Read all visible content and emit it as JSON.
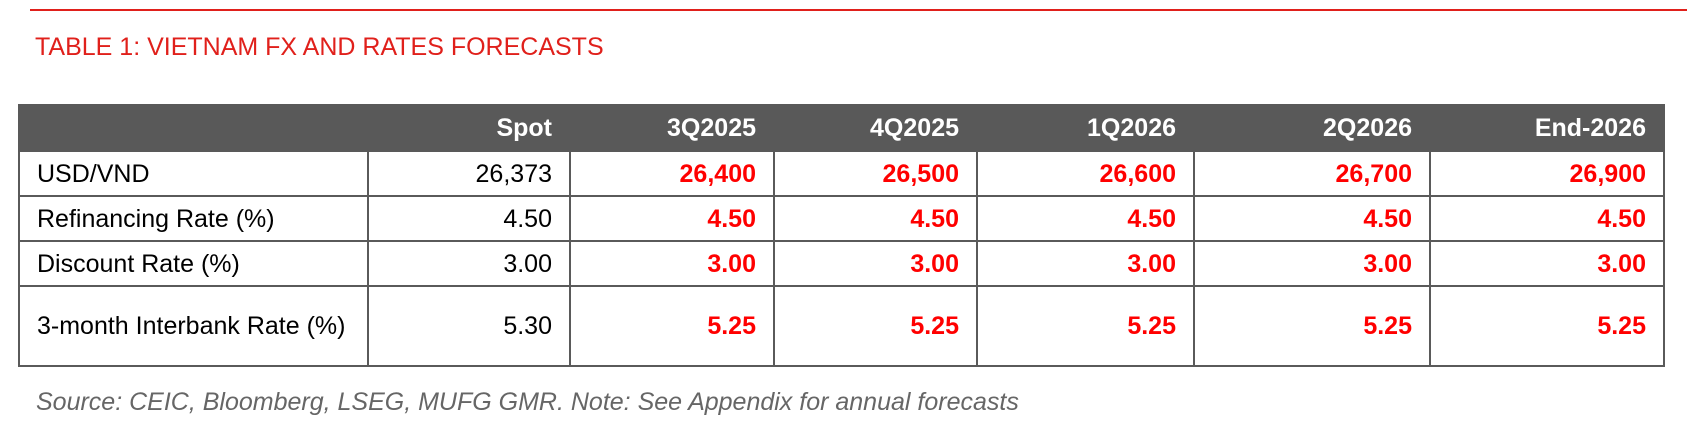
{
  "header": {
    "title": "TABLE 1: VIETNAM FX AND RATES FORECASTS"
  },
  "table": {
    "columns": [
      "",
      "Spot",
      "3Q2025",
      "4Q2025",
      "1Q2026",
      "2Q2026",
      "End-2026"
    ],
    "rows": [
      [
        "USD/VND",
        "26,373",
        "26,400",
        "26,500",
        "26,600",
        "26,700",
        "26,900"
      ],
      [
        "Refinancing Rate (%)",
        "4.50",
        "4.50",
        "4.50",
        "4.50",
        "4.50",
        "4.50"
      ],
      [
        "Discount Rate (%)",
        "3.00",
        "3.00",
        "3.00",
        "3.00",
        "3.00",
        "3.00"
      ],
      [
        "3-month Interbank Rate (%)",
        "5.30",
        "5.25",
        "5.25",
        "5.25",
        "5.25",
        "5.25"
      ]
    ]
  },
  "source": "Source: CEIC, Bloomberg, LSEG, MUFG GMR. Note: See Appendix for annual forecasts"
}
